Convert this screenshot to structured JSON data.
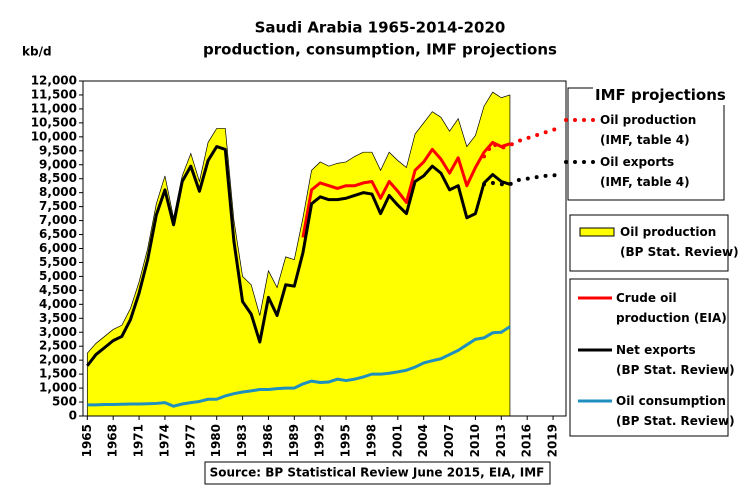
{
  "chart_data": {
    "type": "area-line",
    "title": "Saudi Arabia 1965-2014-2020",
    "subtitle": "production, consumption, IMF projections",
    "y_label": "kb/d",
    "source": "Source: BP Statistical Review  June 2015, EIA, IMF",
    "legend_group_title": "IMF projections",
    "x": [
      1965,
      1966,
      1967,
      1968,
      1969,
      1970,
      1971,
      1972,
      1973,
      1974,
      1975,
      1976,
      1977,
      1978,
      1979,
      1980,
      1981,
      1982,
      1983,
      1984,
      1985,
      1986,
      1987,
      1988,
      1989,
      1990,
      1991,
      1992,
      1993,
      1994,
      1995,
      1996,
      1997,
      1998,
      1999,
      2000,
      2001,
      2002,
      2003,
      2004,
      2005,
      2006,
      2007,
      2008,
      2009,
      2010,
      2011,
      2012,
      2013,
      2014,
      2015,
      2016,
      2017,
      2018,
      2019,
      2020
    ],
    "xlim": [
      1964.5,
      2020.5
    ],
    "xticks": [
      1965,
      1968,
      1971,
      1974,
      1977,
      1980,
      1983,
      1986,
      1989,
      1992,
      1995,
      1998,
      2001,
      2004,
      2007,
      2010,
      2013,
      2016,
      2019
    ],
    "ylim": [
      0,
      12000
    ],
    "yticks": [
      0,
      {
        "value": 500,
        "label": "500"
      },
      {
        "value": 1000,
        "label": "1,000"
      },
      {
        "value": 1500,
        "label": "1,500"
      },
      {
        "value": 2000,
        "label": "2,000"
      },
      {
        "value": 2500,
        "label": "2,500"
      },
      {
        "value": 3000,
        "label": "3,000"
      },
      {
        "value": 3500,
        "label": "3,500"
      },
      {
        "value": 4000,
        "label": "4,000"
      },
      {
        "value": 4500,
        "label": "4,500"
      },
      {
        "value": 5000,
        "label": "5,000"
      },
      {
        "value": 5500,
        "label": "5,500"
      },
      {
        "value": 6000,
        "label": "6,000"
      },
      {
        "value": 6500,
        "label": "6,500"
      },
      {
        "value": 7000,
        "label": "7,000"
      },
      {
        "value": 7500,
        "label": "7,500"
      },
      {
        "value": 8000,
        "label": "8,000"
      },
      {
        "value": 8500,
        "label": "8,500"
      },
      {
        "value": 9000,
        "label": "9,000"
      },
      {
        "value": 9500,
        "label": "9,500"
      },
      {
        "value": 10000,
        "label": "10,000"
      },
      {
        "value": 10500,
        "label": "10,500"
      },
      {
        "value": 11000,
        "label": "11,000"
      },
      {
        "value": 11500,
        "label": "11,500"
      },
      {
        "value": 12000,
        "label": "12,000"
      }
    ],
    "grid": false,
    "series": [
      {
        "name": "Oil production\n(BP Stat. Review)",
        "style": "area",
        "color": "#ffff00",
        "values": [
          2250,
          2600,
          2850,
          3100,
          3250,
          3850,
          4800,
          6000,
          7600,
          8600,
          7100,
          8600,
          9400,
          8400,
          9800,
          10300,
          10300,
          7000,
          5000,
          4700,
          3600,
          5200,
          4600,
          5700,
          5600,
          7100,
          8800,
          9100,
          8950,
          9050,
          9100,
          9300,
          9450,
          9450,
          8800,
          9450,
          9150,
          8900,
          10100,
          10500,
          10900,
          10700,
          10200,
          10650,
          9650,
          10050,
          11100,
          11600,
          11400,
          11500,
          null,
          null,
          null,
          null,
          null,
          null
        ]
      },
      {
        "name": "Crude oil\nproduction (EIA)",
        "style": "line",
        "color": "#ff0000",
        "values": [
          null,
          null,
          null,
          null,
          null,
          null,
          null,
          null,
          null,
          null,
          null,
          null,
          null,
          null,
          null,
          null,
          null,
          null,
          null,
          null,
          null,
          null,
          null,
          null,
          null,
          6400,
          8100,
          8350,
          8250,
          8150,
          8250,
          8250,
          8350,
          8400,
          7800,
          8400,
          8050,
          7650,
          8800,
          9100,
          9550,
          9200,
          8700,
          9250,
          8250,
          8900,
          9450,
          9800,
          9650,
          9750,
          null,
          null,
          null,
          null,
          null,
          null
        ]
      },
      {
        "name": "Net exports\n(BP Stat. Review)",
        "style": "line",
        "color": "#000000",
        "values": [
          1800,
          2200,
          2450,
          2700,
          2850,
          3450,
          4400,
          5600,
          7200,
          8100,
          6850,
          8400,
          8950,
          8050,
          9150,
          9650,
          9550,
          6250,
          4100,
          3650,
          2650,
          4250,
          3600,
          4700,
          4650,
          5850,
          7600,
          7850,
          7750,
          7750,
          7800,
          7900,
          8000,
          7950,
          7250,
          7900,
          7550,
          7250,
          8400,
          8600,
          8950,
          8700,
          8100,
          8250,
          7100,
          7250,
          8350,
          8650,
          8400,
          8300,
          null,
          null,
          null,
          null,
          null,
          null
        ]
      },
      {
        "name": "Oil consumption\n(BP Stat. Review)",
        "style": "line",
        "color": "#1f8fc0",
        "values": [
          400,
          400,
          410,
          410,
          420,
          430,
          430,
          440,
          450,
          480,
          350,
          430,
          480,
          520,
          600,
          600,
          720,
          800,
          860,
          900,
          950,
          950,
          980,
          1000,
          1000,
          1150,
          1250,
          1200,
          1220,
          1320,
          1270,
          1320,
          1400,
          1500,
          1500,
          1530,
          1580,
          1640,
          1750,
          1900,
          1980,
          2050,
          2200,
          2350,
          2550,
          2750,
          2800,
          2980,
          3000,
          3200,
          null,
          null,
          null,
          null,
          null,
          null
        ]
      },
      {
        "name": "Oil production\n(IMF, table 4)",
        "style": "dotted",
        "color": "#ff0000",
        "values": [
          null,
          null,
          null,
          null,
          null,
          null,
          null,
          null,
          null,
          null,
          null,
          null,
          null,
          null,
          null,
          null,
          null,
          null,
          null,
          null,
          null,
          null,
          null,
          null,
          null,
          null,
          null,
          null,
          null,
          null,
          null,
          null,
          null,
          null,
          null,
          null,
          null,
          null,
          null,
          null,
          null,
          null,
          null,
          null,
          null,
          null,
          9300,
          9750,
          9600,
          9700,
          9850,
          9950,
          10050,
          10150,
          10250,
          10350
        ]
      },
      {
        "name": "Oil exports\n(IMF, table 4)",
        "style": "dotted",
        "color": "#000000",
        "values": [
          null,
          null,
          null,
          null,
          null,
          null,
          null,
          null,
          null,
          null,
          null,
          null,
          null,
          null,
          null,
          null,
          null,
          null,
          null,
          null,
          null,
          null,
          null,
          null,
          null,
          null,
          null,
          null,
          null,
          null,
          null,
          null,
          null,
          null,
          null,
          null,
          null,
          null,
          null,
          null,
          null,
          null,
          null,
          null,
          null,
          null,
          8300,
          8350,
          8300,
          8300,
          8450,
          8500,
          8550,
          8600,
          8620,
          8650
        ]
      }
    ]
  }
}
